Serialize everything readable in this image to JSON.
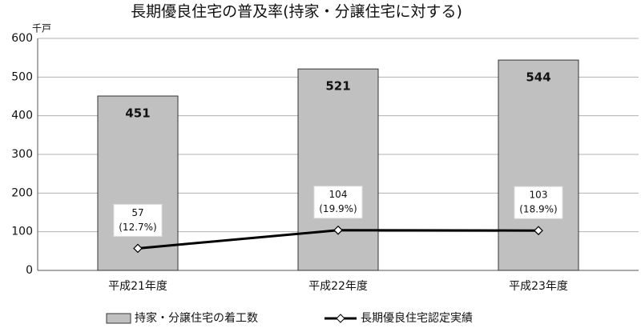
{
  "chart_data": {
    "type": "bar_line",
    "title": "長期優良住宅の普及率(持家・分譲住宅に対する)",
    "y_unit": "千戸",
    "categories": [
      "平成21年度",
      "平成22年度",
      "平成23年度"
    ],
    "series": [
      {
        "name": "持家・分譲住宅の着工数",
        "type": "bar",
        "color": "#c0c0c0",
        "values": [
          451,
          521,
          544
        ]
      },
      {
        "name": "長期優良住宅認定実績",
        "type": "line",
        "color": "#000000",
        "values": [
          57,
          104,
          103
        ],
        "shares": [
          "(12.7%)",
          "(19.9%)",
          "(18.9%)"
        ]
      }
    ],
    "ylim": [
      0,
      600
    ],
    "yticks": [
      0,
      100,
      200,
      300,
      400,
      500,
      600
    ],
    "grid": true
  }
}
